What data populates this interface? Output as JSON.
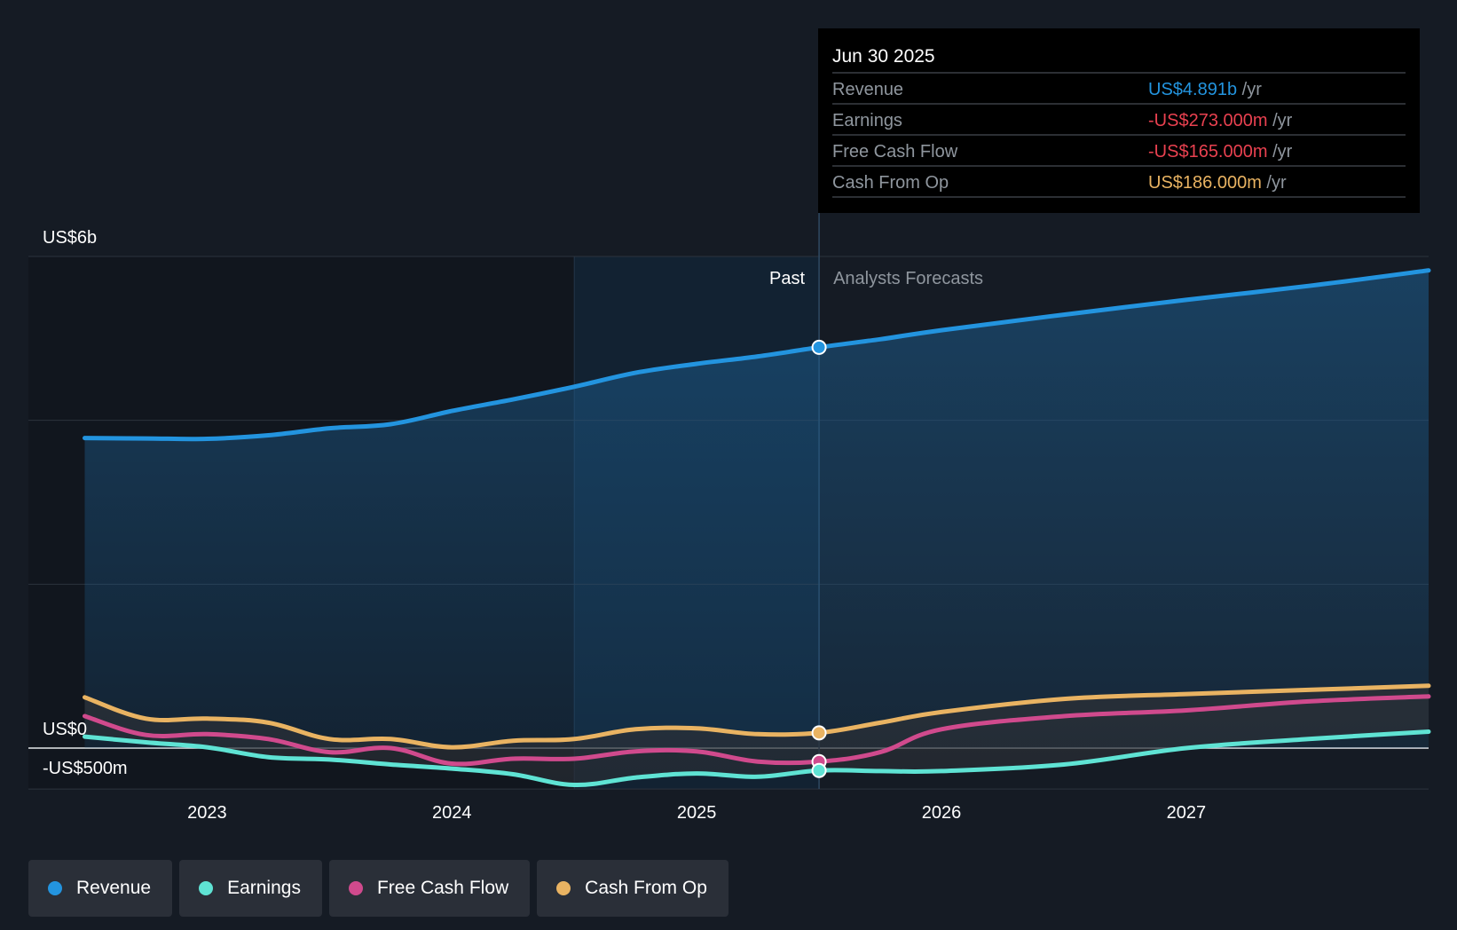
{
  "colors": {
    "revenue": "#2394df",
    "earnings": "#5fe3d4",
    "free_cash_flow": "#d04a8d",
    "cash_from_op": "#e9b362",
    "negative": "#e94150",
    "muted": "#8f969e"
  },
  "chart_data": {
    "type": "line",
    "title": "",
    "xlabel": "",
    "ylabel": "",
    "ylim": [
      -500,
      6000
    ],
    "y_tick_labels": [
      "US$6b",
      "US$0",
      "-US$500m"
    ],
    "x_tick_values": [
      2023,
      2024,
      2025,
      2026,
      2027
    ],
    "x_tick_labels": [
      "2023",
      "2024",
      "2025",
      "2026",
      "2027"
    ],
    "xlim": [
      2022.27,
      2027.99
    ],
    "divider_x": 2025.5,
    "highlight_start_x": 2024.5,
    "past_label": "Past",
    "forecast_label": "Analysts Forecasts",
    "series": [
      {
        "name": "Revenue",
        "key": "revenue",
        "points": [
          [
            2022.5,
            3784
          ],
          [
            2022.75,
            3779
          ],
          [
            2023.0,
            3774
          ],
          [
            2023.25,
            3818
          ],
          [
            2023.5,
            3903
          ],
          [
            2023.75,
            3953
          ],
          [
            2024.0,
            4114
          ],
          [
            2024.25,
            4255
          ],
          [
            2024.5,
            4410
          ],
          [
            2024.75,
            4580
          ],
          [
            2025.0,
            4690
          ],
          [
            2025.25,
            4780
          ],
          [
            2025.5,
            4891
          ],
          [
            2025.75,
            4990
          ],
          [
            2026.0,
            5100
          ],
          [
            2026.5,
            5290
          ],
          [
            2027.0,
            5470
          ],
          [
            2027.5,
            5640
          ],
          [
            2027.99,
            5830
          ]
        ]
      },
      {
        "name": "Earnings",
        "key": "earnings",
        "points": [
          [
            2022.5,
            140
          ],
          [
            2022.75,
            70
          ],
          [
            2023.0,
            10
          ],
          [
            2023.25,
            -110
          ],
          [
            2023.5,
            -140
          ],
          [
            2023.75,
            -200
          ],
          [
            2024.0,
            -250
          ],
          [
            2024.25,
            -320
          ],
          [
            2024.5,
            -450
          ],
          [
            2024.75,
            -360
          ],
          [
            2025.0,
            -310
          ],
          [
            2025.25,
            -350
          ],
          [
            2025.5,
            -273
          ],
          [
            2025.75,
            -280
          ],
          [
            2026.0,
            -280
          ],
          [
            2026.5,
            -200
          ],
          [
            2027.0,
            0
          ],
          [
            2027.5,
            110
          ],
          [
            2027.99,
            200
          ]
        ]
      },
      {
        "name": "Free Cash Flow",
        "key": "free_cash_flow",
        "points": [
          [
            2022.5,
            390
          ],
          [
            2022.75,
            160
          ],
          [
            2023.0,
            170
          ],
          [
            2023.25,
            110
          ],
          [
            2023.5,
            -50
          ],
          [
            2023.75,
            0
          ],
          [
            2024.0,
            -190
          ],
          [
            2024.25,
            -130
          ],
          [
            2024.5,
            -130
          ],
          [
            2024.75,
            -40
          ],
          [
            2025.0,
            -40
          ],
          [
            2025.25,
            -165
          ],
          [
            2025.5,
            -165
          ],
          [
            2025.75,
            -50
          ],
          [
            2026.0,
            230
          ],
          [
            2026.5,
            390
          ],
          [
            2027.0,
            460
          ],
          [
            2027.5,
            570
          ],
          [
            2027.99,
            630
          ]
        ]
      },
      {
        "name": "Cash From Op",
        "key": "cash_from_op",
        "points": [
          [
            2022.5,
            620
          ],
          [
            2022.75,
            360
          ],
          [
            2023.0,
            360
          ],
          [
            2023.25,
            310
          ],
          [
            2023.5,
            110
          ],
          [
            2023.75,
            110
          ],
          [
            2024.0,
            10
          ],
          [
            2024.25,
            90
          ],
          [
            2024.5,
            110
          ],
          [
            2024.75,
            230
          ],
          [
            2025.0,
            240
          ],
          [
            2025.25,
            170
          ],
          [
            2025.5,
            186
          ],
          [
            2025.75,
            310
          ],
          [
            2026.0,
            440
          ],
          [
            2026.5,
            600
          ],
          [
            2027.0,
            660
          ],
          [
            2027.5,
            710
          ],
          [
            2027.99,
            760
          ]
        ]
      }
    ],
    "tooltip": {
      "date": "Jun 30 2025",
      "rows": [
        {
          "name": "Revenue",
          "value": "US$4.891b",
          "unit": "/yr",
          "key": "revenue"
        },
        {
          "name": "Earnings",
          "value": "-US$273.000m",
          "unit": "/yr",
          "key": "negative"
        },
        {
          "name": "Free Cash Flow",
          "value": "-US$165.000m",
          "unit": "/yr",
          "key": "negative"
        },
        {
          "name": "Cash From Op",
          "value": "US$186.000m",
          "unit": "/yr",
          "key": "cash_from_op"
        }
      ]
    }
  },
  "legend": [
    {
      "label": "Revenue",
      "key": "revenue"
    },
    {
      "label": "Earnings",
      "key": "earnings"
    },
    {
      "label": "Free Cash Flow",
      "key": "free_cash_flow"
    },
    {
      "label": "Cash From Op",
      "key": "cash_from_op"
    }
  ]
}
